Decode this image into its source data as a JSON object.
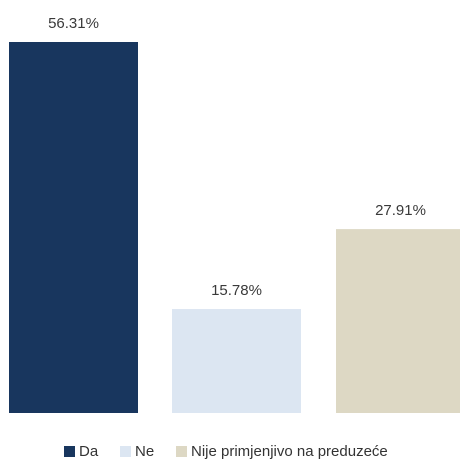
{
  "chart_data": {
    "type": "bar",
    "categories": [
      "Da",
      "Ne",
      "Nije primjenjivo na preduzeće"
    ],
    "values": [
      56.31,
      15.78,
      27.91
    ],
    "data_labels": [
      "56.31%",
      "15.78%",
      "27.91%"
    ],
    "colors": [
      "#18365e",
      "#dce6f2",
      "#ddd8c4"
    ],
    "ylim": [
      0,
      56.31
    ],
    "grid": false,
    "legend": "bottom",
    "title": "",
    "xlabel": "",
    "ylabel": ""
  }
}
